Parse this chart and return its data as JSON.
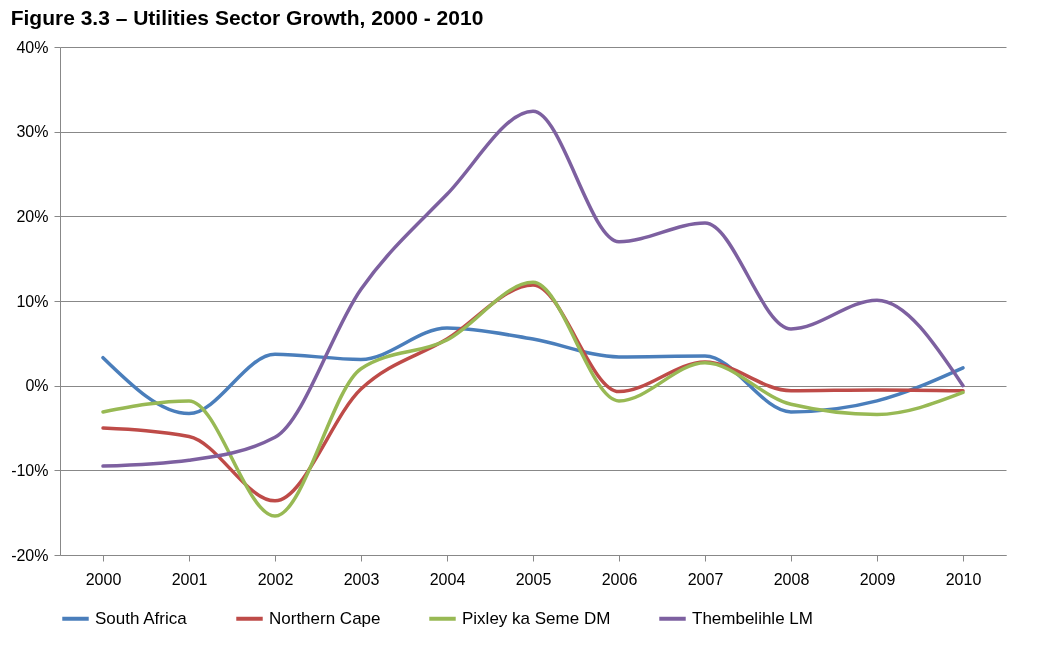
{
  "chart_data": {
    "type": "line",
    "title": "Figure 3.3 – Utilities Sector Growth, 2000 - 2010",
    "categories": [
      "2000",
      "2001",
      "2002",
      "2003",
      "2004",
      "2005",
      "2006",
      "2007",
      "2008",
      "2009",
      "2010"
    ],
    "series": [
      {
        "name": "South Africa",
        "color": "#4a7ebb",
        "values": [
          3.3,
          -3.3,
          3.7,
          3.1,
          6.8,
          5.5,
          3.4,
          3.5,
          -3.1,
          -1.8,
          2.1
        ]
      },
      {
        "name": "Northern Cape",
        "color": "#be4b48",
        "values": [
          -5,
          -6,
          -13.6,
          -0.4,
          5.5,
          11.9,
          -0.7,
          2.8,
          -0.6,
          -0.5,
          -0.6
        ]
      },
      {
        "name": "Pixley ka Seme DM",
        "color": "#98b954",
        "values": [
          -3.1,
          -1.8,
          -15.4,
          2,
          5.4,
          12.2,
          -1.8,
          2.7,
          -2.2,
          -3.4,
          -0.8
        ]
      },
      {
        "name": "Thembelihle LM",
        "color": "#7d60a0",
        "values": [
          -9.5,
          -8.8,
          -6.1,
          11.4,
          22.6,
          32.4,
          17,
          19.2,
          6.7,
          10.1,
          0
        ]
      }
    ],
    "ylim": [
      -20,
      40
    ],
    "yticks": [
      {
        "value": -20,
        "label": "-20%"
      },
      {
        "value": -10,
        "label": "-10%"
      },
      {
        "value": 0,
        "label": "0%"
      },
      {
        "value": 10,
        "label": "10%"
      },
      {
        "value": 20,
        "label": "20%"
      },
      {
        "value": 30,
        "label": "30%"
      },
      {
        "value": 40,
        "label": "40%"
      }
    ],
    "grid": "y",
    "legend": "bottom",
    "marker": "none",
    "line_style": "solid"
  }
}
